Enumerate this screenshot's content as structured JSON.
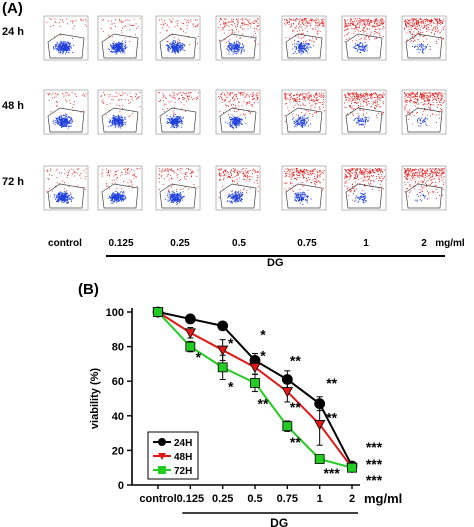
{
  "panelA": {
    "label": "(A)",
    "rows": [
      "24 h",
      "48 h",
      "72 h"
    ],
    "concentrations": [
      "control",
      "0.125",
      "0.25",
      "0.5",
      "0.75",
      "1",
      "2",
      "mg/ml"
    ],
    "dg_label": "DG",
    "flow_red_density": [
      [
        0.05,
        0.1,
        0.18,
        0.4,
        0.6,
        0.85,
        1.0
      ]
    ],
    "flow_colors": {
      "viable": "#1f3fdc",
      "dead": "#e01818",
      "gate": "#444444"
    }
  },
  "panelB": {
    "label": "(B)",
    "dg_label": "DG"
  },
  "chart_data": {
    "type": "line",
    "categories": [
      "control",
      "0.125",
      "0.25",
      "0.5",
      "0.75",
      "1",
      "2"
    ],
    "xlabel": "",
    "xunit": "mg/ml",
    "ylabel": "viability (%)",
    "ylim": [
      0,
      100
    ],
    "yticks": [
      0,
      20,
      40,
      60,
      80,
      100
    ],
    "legend_position": "lower-left",
    "series": [
      {
        "name": "24H",
        "color": "#000000",
        "marker": "circle",
        "values": [
          100,
          96,
          92,
          72,
          61,
          47,
          11
        ],
        "errors": [
          0,
          1,
          1,
          4,
          5,
          4,
          2
        ]
      },
      {
        "name": "48H",
        "color": "#e01818",
        "marker": "triangle-down",
        "values": [
          100,
          88,
          78,
          68,
          54,
          35,
          10
        ],
        "errors": [
          0,
          3,
          6,
          4,
          6,
          12,
          2
        ]
      },
      {
        "name": "72H",
        "color": "#22cc22",
        "marker": "square",
        "values": [
          100,
          80,
          68,
          59,
          34,
          15,
          10
        ],
        "errors": [
          0,
          3,
          7,
          5,
          3,
          2,
          2
        ]
      }
    ],
    "annotations": [
      {
        "x": "0.125",
        "y": 74,
        "text": "*"
      },
      {
        "x": "0.25",
        "y": 82,
        "text": "*"
      },
      {
        "x": "0.25",
        "y": 57,
        "text": "*"
      },
      {
        "x": "0.5",
        "y": 87,
        "text": "*"
      },
      {
        "x": "0.5",
        "y": 75,
        "text": "*"
      },
      {
        "x": "0.5",
        "y": 47,
        "text": "**"
      },
      {
        "x": "0.75",
        "y": 72,
        "text": "**"
      },
      {
        "x": "0.75",
        "y": 45,
        "text": "**"
      },
      {
        "x": "0.75",
        "y": 25,
        "text": "**"
      },
      {
        "x": "1",
        "y": 59,
        "text": "**"
      },
      {
        "x": "1",
        "y": 39,
        "text": "**"
      },
      {
        "x": "1",
        "y": 7,
        "text": "***"
      },
      {
        "x": "2",
        "y": 22,
        "text": "***"
      },
      {
        "x": "2",
        "y": 12,
        "text": "***"
      },
      {
        "x": "2",
        "y": 3,
        "text": "***"
      }
    ]
  }
}
